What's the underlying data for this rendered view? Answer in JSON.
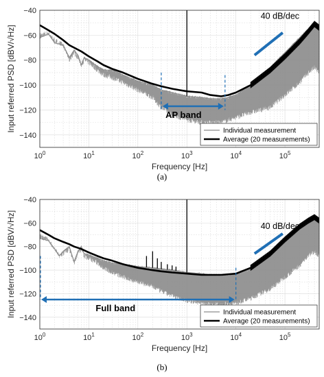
{
  "chart_data": [
    {
      "type": "line",
      "caption": "(a)",
      "xlabel": "Frequency [Hz]",
      "ylabel": "Input referred PSD [dBV/√Hz]",
      "xscale": "log",
      "xlim": [
        1,
        500000
      ],
      "ylim": [
        -150,
        -40
      ],
      "xticks": [
        "10^0",
        "10^1",
        "10^2",
        "10^3",
        "10^4",
        "10^5"
      ],
      "yticks": [
        -40,
        -60,
        -80,
        -100,
        -120,
        -140
      ],
      "grid": true,
      "legend_position": "bottom-right",
      "series": [
        {
          "name": "Individual measurement",
          "color": "#8c8c8c",
          "x": [
            1,
            1.5,
            2,
            3,
            4,
            5,
            6,
            7,
            8,
            10,
            15,
            20,
            30,
            50,
            100,
            200,
            300,
            500,
            1000,
            2000,
            3000,
            5000,
            7000,
            10000,
            20000,
            50000,
            100000,
            200000,
            300000,
            400000,
            500000
          ],
          "y": [
            -62,
            -59,
            -66,
            -68,
            -78,
            -72,
            -76,
            -84,
            -78,
            -80,
            -85,
            -88,
            -88,
            -92,
            -97,
            -100,
            -104,
            -106,
            -109,
            -110,
            -111,
            -111,
            -110,
            -108,
            -100,
            -86,
            -74,
            -62,
            -55,
            -50,
            -56
          ],
          "noise_band_min": [
            -62,
            -60,
            -66,
            -70,
            -82,
            -76,
            -80,
            -86,
            -82,
            -84,
            -90,
            -94,
            -96,
            -100,
            -106,
            -112,
            -120,
            -126,
            -130,
            -132,
            -132,
            -132,
            -130,
            -128,
            -124,
            -120,
            -110,
            -100,
            -92,
            -88,
            -92
          ]
        },
        {
          "name": "Average (20 measurements)",
          "color": "#000000",
          "x": [
            1,
            1.5,
            2,
            3,
            4,
            5,
            7,
            10,
            15,
            20,
            30,
            50,
            100,
            200,
            300,
            500,
            700,
            1000,
            2000,
            3000,
            5000,
            7000,
            10000,
            20000,
            50000,
            100000,
            200000,
            300000,
            400000,
            500000
          ],
          "y": [
            -52,
            -56,
            -59,
            -64,
            -68,
            -70,
            -73,
            -77,
            -81,
            -84,
            -87,
            -90,
            -95,
            -99,
            -101,
            -103,
            -104,
            -105,
            -106,
            -108,
            -109,
            -108,
            -106,
            -100,
            -88,
            -77,
            -65,
            -57,
            -51,
            -54
          ]
        }
      ],
      "spikes": [
        {
          "x": 1000,
          "y_top": -40
        }
      ],
      "annotations": {
        "slope_label": "40 dB/dec",
        "band_label": "AP band",
        "band_range": [
          300,
          6000
        ]
      }
    },
    {
      "type": "line",
      "caption": "(b)",
      "xlabel": "Frequency [Hz]",
      "ylabel": "Input referred PSD [dBV/√Hz]",
      "xscale": "log",
      "xlim": [
        1,
        500000
      ],
      "ylim": [
        -150,
        -40
      ],
      "xticks": [
        "10^0",
        "10^1",
        "10^2",
        "10^3",
        "10^4",
        "10^5"
      ],
      "yticks": [
        -40,
        -60,
        -80,
        -100,
        -120,
        -140
      ],
      "grid": true,
      "legend_position": "bottom-right",
      "series": [
        {
          "name": "Individual measurement",
          "color": "#8c8c8c",
          "x": [
            1,
            1.5,
            2,
            2.5,
            3,
            4,
            5,
            6,
            7,
            8,
            10,
            15,
            20,
            30,
            50,
            100,
            200,
            300,
            500,
            1000,
            2000,
            3000,
            5000,
            10000,
            20000,
            50000,
            100000,
            200000,
            300000,
            400000,
            500000
          ],
          "y": [
            -73,
            -75,
            -82,
            -88,
            -84,
            -80,
            -93,
            -84,
            -80,
            -86,
            -87,
            -90,
            -92,
            -94,
            -95,
            -97,
            -98,
            -99,
            -100,
            -102,
            -103,
            -104,
            -104,
            -104,
            -99,
            -86,
            -73,
            -62,
            -57,
            -54,
            -58
          ],
          "noise_band_min": [
            -73,
            -76,
            -84,
            -90,
            -88,
            -84,
            -96,
            -88,
            -84,
            -90,
            -92,
            -96,
            -100,
            -104,
            -108,
            -112,
            -116,
            -120,
            -124,
            -128,
            -130,
            -131,
            -131,
            -130,
            -126,
            -118,
            -108,
            -98,
            -90,
            -86,
            -90
          ]
        },
        {
          "name": "Average (20 measurements)",
          "color": "#000000",
          "x": [
            1,
            1.5,
            2,
            3,
            4,
            5,
            7,
            10,
            15,
            20,
            30,
            50,
            100,
            200,
            300,
            500,
            1000,
            2000,
            3000,
            5000,
            10000,
            20000,
            50000,
            100000,
            200000,
            300000,
            400000,
            500000
          ],
          "y": [
            -66,
            -70,
            -73,
            -76,
            -78,
            -80,
            -82,
            -85,
            -88,
            -90,
            -92,
            -95,
            -98,
            -100,
            -101,
            -102,
            -103,
            -104,
            -104,
            -104,
            -103,
            -98,
            -86,
            -74,
            -63,
            -58,
            -55,
            -58
          ]
        }
      ],
      "spikes": [
        {
          "x": 1000,
          "y_top": -40
        },
        {
          "x": 150,
          "y_top": -88
        },
        {
          "x": 200,
          "y_top": -84
        },
        {
          "x": 250,
          "y_top": -90
        },
        {
          "x": 300,
          "y_top": -93
        },
        {
          "x": 400,
          "y_top": -95
        },
        {
          "x": 500,
          "y_top": -96
        },
        {
          "x": 600,
          "y_top": -97
        }
      ],
      "annotations": {
        "slope_label": "40 dB/dec",
        "band_label": "Full band",
        "band_range": [
          1,
          10000
        ]
      }
    }
  ],
  "colors": {
    "accent_blue": "#1f6fb5",
    "individual": "#8c8c8c",
    "average": "#000000",
    "grid": "#d9d9d9"
  }
}
